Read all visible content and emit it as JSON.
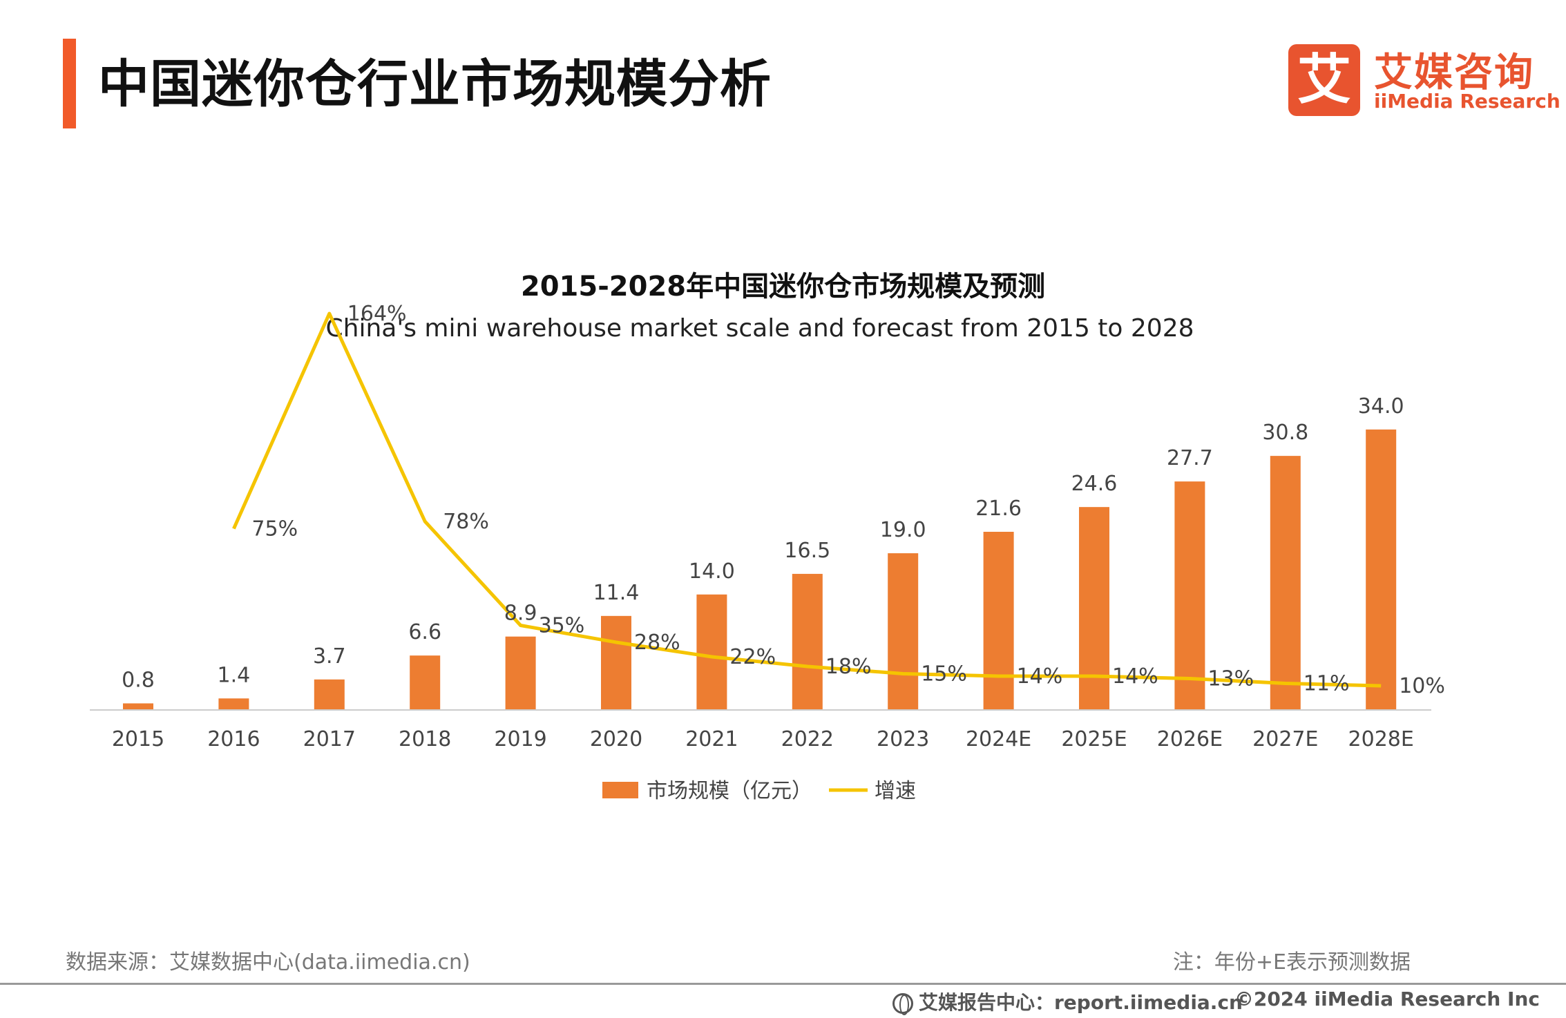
{
  "header": {
    "title": "中国迷你仓行业市场规模分析",
    "accent_color": "#f15a29"
  },
  "logo": {
    "mark": "艾",
    "cn": "艾媒咨询",
    "en": "iiMedia Research",
    "color": "#e8542f"
  },
  "chart_data": {
    "type": "bar",
    "title": "2015-2028年中国迷你仓市场规模及预测",
    "subtitle": "China's mini warehouse market scale and forecast from 2015 to 2028",
    "categories": [
      "2015",
      "2016",
      "2017",
      "2018",
      "2019",
      "2020",
      "2021",
      "2022",
      "2023",
      "2024E",
      "2025E",
      "2026E",
      "2027E",
      "2028E"
    ],
    "series": [
      {
        "name": "市场规模（亿元）",
        "kind": "bar",
        "color": "#ed7d31",
        "values": [
          0.8,
          1.4,
          3.7,
          6.6,
          8.9,
          11.4,
          14.0,
          16.5,
          19.0,
          21.6,
          24.6,
          27.7,
          30.8,
          34.0
        ],
        "labels": [
          "0.8",
          "1.4",
          "3.7",
          "6.6",
          "8.9",
          "11.4",
          "14.0",
          "16.5",
          "19.0",
          "21.6",
          "24.6",
          "27.7",
          "30.8",
          "34.0"
        ]
      },
      {
        "name": "增速",
        "kind": "line",
        "color": "#f5c400",
        "values": [
          null,
          75,
          164,
          78,
          35,
          28,
          22,
          18,
          15,
          14,
          14,
          13,
          11,
          10
        ],
        "labels": [
          "",
          "75%",
          "164%",
          "78%",
          "35%",
          "28%",
          "22%",
          "18%",
          "15%",
          "14%",
          "14%",
          "13%",
          "11%",
          "10%"
        ]
      }
    ],
    "xlabel": "",
    "ylabel": "",
    "bar_ylim": [
      0,
      36
    ],
    "line_ylim": [
      0,
      180
    ],
    "grid": false,
    "legend_position": "bottom"
  },
  "footer": {
    "source": "数据来源：艾媒数据中心(data.iimedia.cn)",
    "note": "注：年份+E表示预测数据",
    "report": "艾媒报告中心：report.iimedia.cn",
    "copyright": "©2024  iiMedia Research  Inc"
  }
}
